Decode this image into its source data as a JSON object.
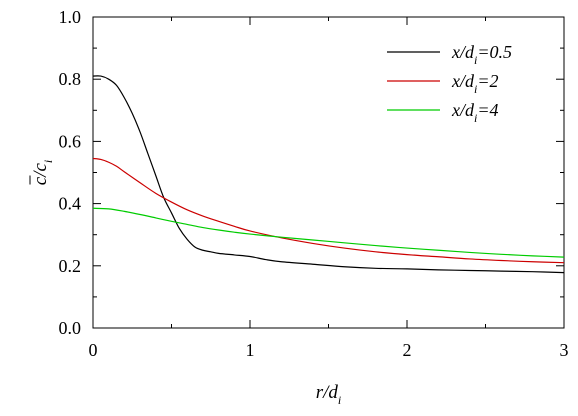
{
  "chart_data": {
    "type": "line",
    "title": "",
    "xlabel": "r/d_i",
    "ylabel": "c̄/c_i",
    "xlim": [
      0,
      3
    ],
    "ylim": [
      0,
      1.0
    ],
    "xticks": [
      0,
      1,
      2,
      3
    ],
    "yticks": [
      0.0,
      0.2,
      0.4,
      0.6,
      0.8,
      1.0
    ],
    "xtick_labels": [
      "0",
      "1",
      "2",
      "3"
    ],
    "ytick_labels": [
      "0.0",
      "0.2",
      "0.4",
      "0.6",
      "0.8",
      "1.0"
    ],
    "grid": false,
    "legend_position": "top-right",
    "series": [
      {
        "name": "x/d_i=0.5",
        "label_parts": [
          "x/d",
          "i",
          "=0.5"
        ],
        "color": "#000000",
        "x": [
          0,
          0.05,
          0.1,
          0.15,
          0.2,
          0.25,
          0.3,
          0.35,
          0.4,
          0.45,
          0.5,
          0.55,
          0.6,
          0.65,
          0.7,
          0.75,
          0.8,
          0.9,
          1.0,
          1.1,
          1.2,
          1.4,
          1.6,
          1.8,
          2.0,
          2.2,
          2.4,
          2.6,
          2.8,
          3.0
        ],
        "y": [
          0.81,
          0.81,
          0.8,
          0.78,
          0.74,
          0.69,
          0.63,
          0.56,
          0.49,
          0.42,
          0.37,
          0.32,
          0.285,
          0.26,
          0.25,
          0.245,
          0.24,
          0.235,
          0.23,
          0.22,
          0.213,
          0.205,
          0.197,
          0.192,
          0.19,
          0.187,
          0.185,
          0.183,
          0.181,
          0.178
        ]
      },
      {
        "name": "x/d_i=2",
        "label_parts": [
          "x/d",
          "i",
          "=2"
        ],
        "color": "#cc0000",
        "x": [
          0,
          0.05,
          0.1,
          0.15,
          0.2,
          0.3,
          0.4,
          0.5,
          0.6,
          0.7,
          0.8,
          0.9,
          1.0,
          1.2,
          1.4,
          1.6,
          1.8,
          2.0,
          2.2,
          2.4,
          2.6,
          2.8,
          3.0
        ],
        "y": [
          0.545,
          0.542,
          0.533,
          0.52,
          0.502,
          0.467,
          0.433,
          0.405,
          0.38,
          0.36,
          0.343,
          0.327,
          0.312,
          0.29,
          0.272,
          0.257,
          0.245,
          0.236,
          0.229,
          0.222,
          0.217,
          0.213,
          0.21
        ]
      },
      {
        "name": "x/d_i=4",
        "label_parts": [
          "x/d",
          "i",
          "=4"
        ],
        "color": "#00cc00",
        "x": [
          0,
          0.1,
          0.2,
          0.3,
          0.4,
          0.5,
          0.6,
          0.7,
          0.8,
          0.9,
          1.0,
          1.2,
          1.4,
          1.6,
          1.8,
          2.0,
          2.2,
          2.4,
          2.6,
          2.8,
          3.0
        ],
        "y": [
          0.385,
          0.383,
          0.375,
          0.365,
          0.354,
          0.343,
          0.333,
          0.323,
          0.315,
          0.308,
          0.302,
          0.292,
          0.283,
          0.274,
          0.265,
          0.257,
          0.25,
          0.243,
          0.237,
          0.232,
          0.228
        ]
      }
    ]
  }
}
